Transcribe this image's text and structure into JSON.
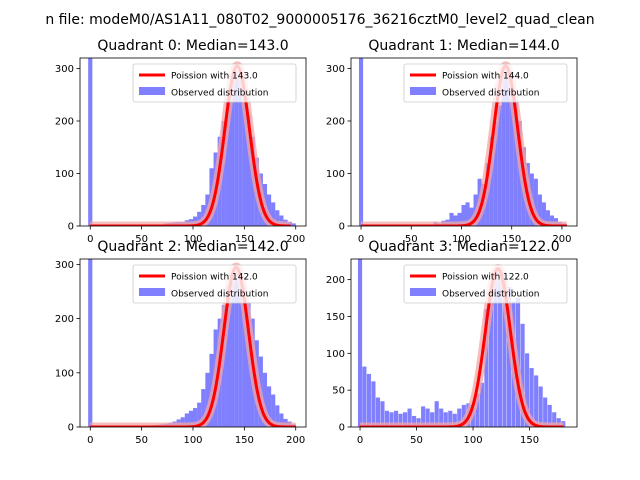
{
  "figure": {
    "suptitle": "n file: modeM0/AS1A11_080T02_9000005176_36216cztM0_level2_quad_clean"
  },
  "colors": {
    "hist": "#8080ff",
    "curve": "#ff0000",
    "curve_highlight": "#f4a6a6",
    "axis": "#000000",
    "background": "#ffffff"
  },
  "chart_data": [
    {
      "type": "bar",
      "title": "Quadrant 0: Median=143.0",
      "xlim": [
        -10,
        210
      ],
      "ylim": [
        0,
        320
      ],
      "xticks": [
        0,
        50,
        100,
        150,
        200
      ],
      "yticks": [
        0,
        100,
        200,
        300
      ],
      "bin_width": 4.08,
      "spike": {
        "x": 0,
        "value": 320
      },
      "bins": [
        [
          72,
          5
        ],
        [
          76,
          6
        ],
        [
          80,
          7
        ],
        [
          84,
          8
        ],
        [
          88,
          8
        ],
        [
          92,
          11
        ],
        [
          96,
          13
        ],
        [
          100,
          18
        ],
        [
          104,
          27
        ],
        [
          108,
          40
        ],
        [
          112,
          60
        ],
        [
          116,
          110
        ],
        [
          120,
          140
        ],
        [
          124,
          170
        ],
        [
          128,
          200
        ],
        [
          132,
          240
        ],
        [
          136,
          280
        ],
        [
          140,
          295
        ],
        [
          144,
          285
        ],
        [
          148,
          250
        ],
        [
          152,
          210
        ],
        [
          156,
          170
        ],
        [
          160,
          130
        ],
        [
          164,
          100
        ],
        [
          168,
          80
        ],
        [
          172,
          60
        ],
        [
          176,
          45
        ],
        [
          180,
          30
        ],
        [
          184,
          20
        ],
        [
          188,
          12
        ],
        [
          192,
          8
        ],
        [
          196,
          5
        ]
      ],
      "poisson_mean": 143.0,
      "poisson_peak": 305,
      "curve_range": [
        0,
        195
      ],
      "legend": {
        "curve_label": "Poission with 143.0",
        "hist_label": "Observed distribution"
      }
    },
    {
      "type": "bar",
      "title": "Quadrant 1: Median=144.0",
      "xlim": [
        -10,
        215
      ],
      "ylim": [
        0,
        320
      ],
      "xticks": [
        0,
        50,
        100,
        150,
        200
      ],
      "yticks": [
        0,
        100,
        200,
        300
      ],
      "bin_width": 4.08,
      "spike": {
        "x": 0,
        "value": 320
      },
      "bins": [
        [
          72,
          8
        ],
        [
          76,
          5
        ],
        [
          80,
          10
        ],
        [
          84,
          12
        ],
        [
          88,
          25
        ],
        [
          92,
          20
        ],
        [
          96,
          25
        ],
        [
          100,
          40
        ],
        [
          104,
          45
        ],
        [
          108,
          35
        ],
        [
          112,
          60
        ],
        [
          116,
          90
        ],
        [
          120,
          80
        ],
        [
          124,
          120
        ],
        [
          128,
          170
        ],
        [
          132,
          200
        ],
        [
          136,
          230
        ],
        [
          140,
          290
        ],
        [
          144,
          300
        ],
        [
          148,
          270
        ],
        [
          152,
          240
        ],
        [
          156,
          200
        ],
        [
          160,
          150
        ],
        [
          164,
          120
        ],
        [
          168,
          100
        ],
        [
          172,
          90
        ],
        [
          176,
          60
        ],
        [
          180,
          45
        ],
        [
          184,
          30
        ],
        [
          188,
          20
        ],
        [
          192,
          15
        ],
        [
          196,
          8
        ],
        [
          200,
          5
        ]
      ],
      "poisson_mean": 144.0,
      "poisson_peak": 305,
      "curve_range": [
        0,
        205
      ],
      "legend": {
        "curve_label": "Poission with 144.0",
        "hist_label": "Observed distribution"
      }
    },
    {
      "type": "bar",
      "title": "Quadrant 2: Median=142.0",
      "xlim": [
        -10,
        210
      ],
      "ylim": [
        0,
        310
      ],
      "xticks": [
        0,
        50,
        100,
        150,
        200
      ],
      "yticks": [
        0,
        100,
        200,
        300
      ],
      "bin_width": 4.08,
      "spike": {
        "x": 0,
        "value": 310
      },
      "bins": [
        [
          60,
          3
        ],
        [
          64,
          4
        ],
        [
          68,
          5
        ],
        [
          72,
          6
        ],
        [
          76,
          8
        ],
        [
          80,
          10
        ],
        [
          84,
          14
        ],
        [
          88,
          18
        ],
        [
          92,
          25
        ],
        [
          96,
          30
        ],
        [
          100,
          35
        ],
        [
          104,
          45
        ],
        [
          108,
          70
        ],
        [
          112,
          100
        ],
        [
          116,
          135
        ],
        [
          120,
          180
        ],
        [
          124,
          200
        ],
        [
          128,
          225
        ],
        [
          132,
          260
        ],
        [
          136,
          270
        ],
        [
          140,
          295
        ],
        [
          144,
          270
        ],
        [
          148,
          260
        ],
        [
          152,
          230
        ],
        [
          156,
          200
        ],
        [
          160,
          160
        ],
        [
          164,
          130
        ],
        [
          168,
          100
        ],
        [
          172,
          75
        ],
        [
          176,
          60
        ],
        [
          180,
          40
        ],
        [
          184,
          25
        ],
        [
          188,
          15
        ],
        [
          192,
          10
        ],
        [
          196,
          5
        ]
      ],
      "poisson_mean": 142.0,
      "poisson_peak": 295,
      "curve_range": [
        0,
        200
      ],
      "legend": {
        "curve_label": "Poission with 142.0",
        "hist_label": "Observed distribution"
      }
    },
    {
      "type": "bar",
      "title": "Quadrant 3: Median=122.0",
      "xlim": [
        -8,
        192
      ],
      "ylim": [
        0,
        228
      ],
      "xticks": [
        0,
        50,
        100,
        150
      ],
      "yticks": [
        0,
        50,
        100,
        150,
        200
      ],
      "bin_width": 3.67,
      "spike": {
        "x": 0,
        "value": 228
      },
      "bins": [
        [
          2,
          82
        ],
        [
          6,
          72
        ],
        [
          10,
          62
        ],
        [
          14,
          40
        ],
        [
          18,
          35
        ],
        [
          22,
          22
        ],
        [
          26,
          20
        ],
        [
          30,
          22
        ],
        [
          34,
          18
        ],
        [
          38,
          20
        ],
        [
          42,
          25
        ],
        [
          46,
          15
        ],
        [
          50,
          12
        ],
        [
          54,
          28
        ],
        [
          58,
          25
        ],
        [
          62,
          20
        ],
        [
          66,
          35
        ],
        [
          70,
          25
        ],
        [
          74,
          20
        ],
        [
          78,
          22
        ],
        [
          82,
          18
        ],
        [
          86,
          25
        ],
        [
          90,
          30
        ],
        [
          94,
          32
        ],
        [
          98,
          30
        ],
        [
          102,
          45
        ],
        [
          106,
          60
        ],
        [
          110,
          160
        ],
        [
          114,
          185
        ],
        [
          118,
          200
        ],
        [
          122,
          215
        ],
        [
          126,
          210
        ],
        [
          130,
          190
        ],
        [
          134,
          170
        ],
        [
          138,
          175
        ],
        [
          142,
          140
        ],
        [
          146,
          100
        ],
        [
          150,
          80
        ],
        [
          154,
          70
        ],
        [
          158,
          55
        ],
        [
          162,
          40
        ],
        [
          166,
          30
        ],
        [
          170,
          20
        ],
        [
          174,
          12
        ],
        [
          178,
          8
        ]
      ],
      "poisson_mean": 122.0,
      "poisson_peak": 215,
      "curve_range": [
        0,
        180
      ],
      "legend": {
        "curve_label": "Poission with 122.0",
        "hist_label": "Observed distribution"
      }
    }
  ]
}
